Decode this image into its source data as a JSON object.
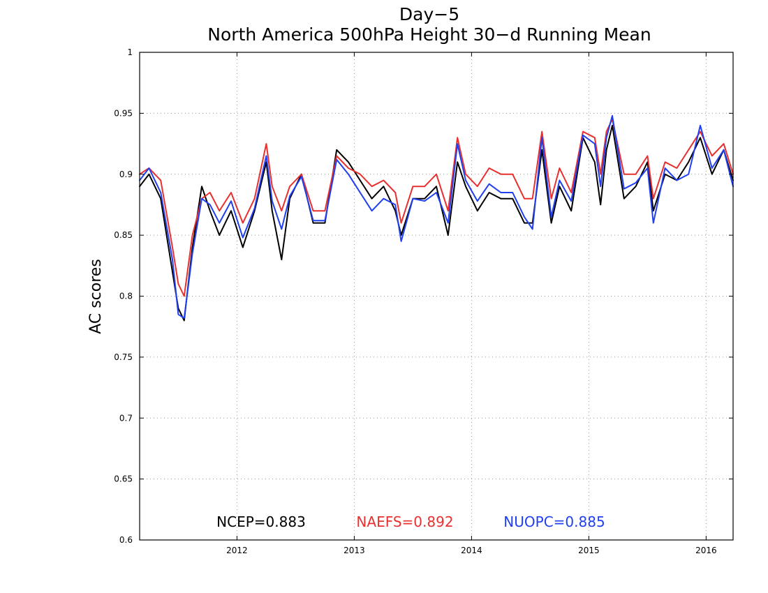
{
  "chart_data": {
    "type": "line",
    "title": "Day−5",
    "subtitle": "North America 500hPa Height 30−d Running Mean",
    "ylabel": "AC scores",
    "xlim": [
      2011.17,
      2016.23
    ],
    "ylim": [
      0.6,
      1.0
    ],
    "yticks": [
      0.6,
      0.65,
      0.7,
      0.75,
      0.8,
      0.85,
      0.9,
      0.95,
      1.0
    ],
    "ytick_labels": [
      "0.6",
      "0.65",
      "0.7",
      "0.75",
      "0.8",
      "0.85",
      "0.9",
      "0.95",
      "1"
    ],
    "xticks": [
      2012,
      2013,
      2014,
      2015,
      2016
    ],
    "xtick_labels": [
      "2012",
      "2013",
      "2014",
      "2015",
      "2016"
    ],
    "grid": true,
    "legend_placement": "bottom",
    "series": [
      {
        "name": "NCEP",
        "legend_label": "NCEP=0.883",
        "color": "#000000",
        "x": [
          2011.17,
          2011.25,
          2011.35,
          2011.45,
          2011.5,
          2011.55,
          2011.62,
          2011.7,
          2011.77,
          2011.85,
          2011.95,
          2012.05,
          2012.15,
          2012.25,
          2012.3,
          2012.38,
          2012.45,
          2012.55,
          2012.65,
          2012.75,
          2012.85,
          2012.95,
          2013.05,
          2013.15,
          2013.25,
          2013.35,
          2013.4,
          2013.5,
          2013.6,
          2013.7,
          2013.8,
          2013.88,
          2013.95,
          2014.05,
          2014.15,
          2014.25,
          2014.35,
          2014.45,
          2014.52,
          2014.6,
          2014.68,
          2014.75,
          2014.85,
          2014.95,
          2015.05,
          2015.1,
          2015.15,
          2015.2,
          2015.3,
          2015.4,
          2015.5,
          2015.55,
          2015.65,
          2015.75,
          2015.85,
          2015.95,
          2016.05,
          2016.15,
          2016.23
        ],
        "y": [
          0.89,
          0.9,
          0.88,
          0.82,
          0.79,
          0.78,
          0.84,
          0.89,
          0.87,
          0.85,
          0.87,
          0.84,
          0.87,
          0.91,
          0.87,
          0.83,
          0.88,
          0.9,
          0.86,
          0.86,
          0.92,
          0.91,
          0.895,
          0.88,
          0.89,
          0.87,
          0.85,
          0.88,
          0.88,
          0.89,
          0.85,
          0.91,
          0.89,
          0.87,
          0.885,
          0.88,
          0.88,
          0.86,
          0.86,
          0.92,
          0.86,
          0.89,
          0.87,
          0.93,
          0.91,
          0.875,
          0.92,
          0.94,
          0.88,
          0.89,
          0.91,
          0.87,
          0.9,
          0.895,
          0.91,
          0.93,
          0.9,
          0.92,
          0.895
        ]
      },
      {
        "name": "NAEFS",
        "legend_label": "NAEFS=0.892",
        "color": "#e8302f",
        "x": [
          2011.17,
          2011.25,
          2011.35,
          2011.45,
          2011.5,
          2011.55,
          2011.62,
          2011.7,
          2011.77,
          2011.85,
          2011.95,
          2012.05,
          2012.15,
          2012.25,
          2012.3,
          2012.38,
          2012.45,
          2012.55,
          2012.65,
          2012.75,
          2012.85,
          2012.95,
          2013.05,
          2013.15,
          2013.25,
          2013.35,
          2013.4,
          2013.5,
          2013.6,
          2013.7,
          2013.8,
          2013.88,
          2013.95,
          2014.05,
          2014.15,
          2014.25,
          2014.35,
          2014.45,
          2014.52,
          2014.6,
          2014.68,
          2014.75,
          2014.85,
          2014.95,
          2015.05,
          2015.1,
          2015.15,
          2015.2,
          2015.3,
          2015.4,
          2015.5,
          2015.55,
          2015.65,
          2015.75,
          2015.85,
          2015.95,
          2016.05,
          2016.15,
          2016.23
        ],
        "y": [
          0.9,
          0.905,
          0.895,
          0.84,
          0.81,
          0.8,
          0.85,
          0.88,
          0.885,
          0.87,
          0.885,
          0.86,
          0.88,
          0.925,
          0.89,
          0.87,
          0.89,
          0.9,
          0.87,
          0.87,
          0.915,
          0.905,
          0.9,
          0.89,
          0.895,
          0.885,
          0.86,
          0.89,
          0.89,
          0.9,
          0.87,
          0.93,
          0.9,
          0.89,
          0.905,
          0.9,
          0.9,
          0.88,
          0.88,
          0.935,
          0.88,
          0.905,
          0.885,
          0.935,
          0.93,
          0.9,
          0.935,
          0.945,
          0.9,
          0.9,
          0.915,
          0.88,
          0.91,
          0.905,
          0.92,
          0.935,
          0.915,
          0.925,
          0.9
        ]
      },
      {
        "name": "NUOPC",
        "legend_label": "NUOPC=0.885",
        "color": "#1f3ff0",
        "x": [
          2011.17,
          2011.25,
          2011.35,
          2011.45,
          2011.5,
          2011.55,
          2011.62,
          2011.7,
          2011.77,
          2011.85,
          2011.95,
          2012.05,
          2012.15,
          2012.25,
          2012.3,
          2012.38,
          2012.45,
          2012.55,
          2012.65,
          2012.75,
          2012.85,
          2012.95,
          2013.05,
          2013.15,
          2013.25,
          2013.35,
          2013.4,
          2013.5,
          2013.6,
          2013.7,
          2013.8,
          2013.88,
          2013.95,
          2014.05,
          2014.15,
          2014.25,
          2014.35,
          2014.45,
          2014.52,
          2014.6,
          2014.68,
          2014.75,
          2014.85,
          2014.95,
          2015.05,
          2015.1,
          2015.15,
          2015.2,
          2015.3,
          2015.4,
          2015.5,
          2015.55,
          2015.65,
          2015.75,
          2015.85,
          2015.95,
          2016.05,
          2016.15,
          2016.23
        ],
        "y": [
          0.895,
          0.905,
          0.885,
          0.83,
          0.785,
          0.782,
          0.835,
          0.88,
          0.875,
          0.86,
          0.878,
          0.848,
          0.872,
          0.915,
          0.878,
          0.855,
          0.882,
          0.898,
          0.862,
          0.862,
          0.912,
          0.9,
          0.885,
          0.87,
          0.88,
          0.875,
          0.845,
          0.88,
          0.878,
          0.885,
          0.86,
          0.925,
          0.895,
          0.878,
          0.892,
          0.885,
          0.885,
          0.865,
          0.855,
          0.93,
          0.865,
          0.895,
          0.878,
          0.932,
          0.925,
          0.89,
          0.93,
          0.948,
          0.888,
          0.893,
          0.905,
          0.86,
          0.905,
          0.895,
          0.9,
          0.94,
          0.905,
          0.92,
          0.89
        ]
      }
    ]
  }
}
